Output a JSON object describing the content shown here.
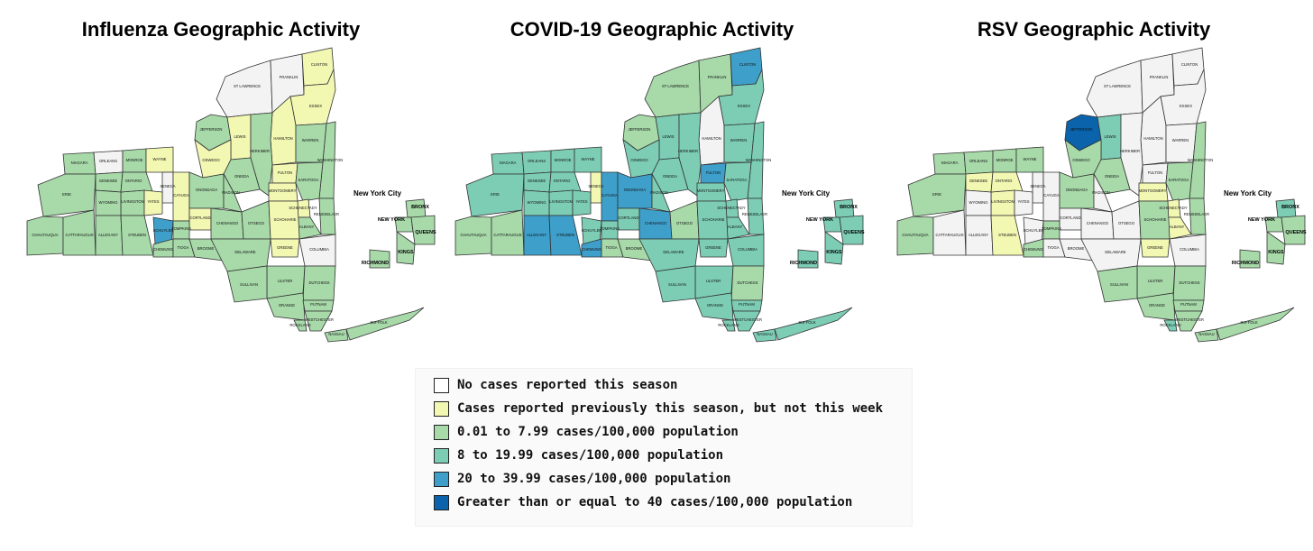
{
  "panels": [
    {
      "title": "Influenza Geographic Activity",
      "counties": {
        "st_lawrence": 0,
        "franklin": 0,
        "clinton": 1,
        "essex": 1,
        "jefferson": 2,
        "lewis": 1,
        "hamilton": 1,
        "warren": 2,
        "washington": 2,
        "oswego": 1,
        "oneida": 2,
        "herkimer": 2,
        "fulton": 1,
        "saratoga": 2,
        "montgomery": 1,
        "schenectady": 1,
        "rensselaer": 2,
        "albany": 2,
        "niagara": 2,
        "orleans": 0,
        "monroe": 2,
        "wayne": 1,
        "erie": 2,
        "genesee": 2,
        "livingston": 2,
        "ontario": 2,
        "seneca": 0,
        "cayuga": 1,
        "onondaga": 2,
        "madison": 2,
        "wyoming": 2,
        "yates": 1,
        "cortland": 1,
        "chenango": 2,
        "otsego": 2,
        "schoharie": 1,
        "chautauqua": 2,
        "cattaraugus": 2,
        "allegany": 2,
        "steuben": 2,
        "schuyler": 4,
        "tompkins": 2,
        "chemung": 2,
        "tioga": 2,
        "broome": 2,
        "delaware": 2,
        "greene": 1,
        "columbia": 0,
        "ulster": 2,
        "sullivan": 2,
        "dutchess": 2,
        "orange": 2,
        "putnam": 2,
        "westchester": 2,
        "rockland": 2,
        "nassau": 2,
        "suffolk": 2,
        "bronx": 2,
        "new_york": 2,
        "queens": 2,
        "kings": 2,
        "richmond": 2
      }
    },
    {
      "title": "COVID-19 Geographic Activity",
      "counties": {
        "st_lawrence": 2,
        "franklin": 2,
        "clinton": 4,
        "essex": 3,
        "jefferson": 2,
        "lewis": 3,
        "hamilton": 0,
        "warren": 3,
        "washington": 3,
        "oswego": 3,
        "oneida": 3,
        "herkimer": 3,
        "fulton": 4,
        "saratoga": 3,
        "montgomery": 3,
        "schenectady": 3,
        "rensselaer": 3,
        "albany": 3,
        "niagara": 3,
        "orleans": 3,
        "monroe": 3,
        "wayne": 3,
        "erie": 3,
        "genesee": 3,
        "livingston": 3,
        "ontario": 3,
        "seneca": 1,
        "cayuga": 4,
        "onondaga": 4,
        "madison": 3,
        "wyoming": 3,
        "yates": 3,
        "cortland": 3,
        "chenango": 4,
        "otsego": 2,
        "schoharie": 3,
        "chautauqua": 2,
        "cattaraugus": 2,
        "allegany": 4,
        "steuben": 4,
        "schuyler": 3,
        "tompkins": 3,
        "chemung": 4,
        "tioga": 2,
        "broome": 2,
        "delaware": 3,
        "greene": 3,
        "columbia": 3,
        "ulster": 3,
        "sullivan": 3,
        "dutchess": 2,
        "orange": 3,
        "putnam": 3,
        "westchester": 3,
        "rockland": 3,
        "nassau": 3,
        "suffolk": 3,
        "bronx": 3,
        "new_york": 3,
        "queens": 3,
        "kings": 3,
        "richmond": 3
      }
    },
    {
      "title": "RSV Geographic Activity",
      "counties": {
        "st_lawrence": 0,
        "franklin": 0,
        "clinton": 0,
        "essex": 0,
        "jefferson": 5,
        "lewis": 3,
        "hamilton": 0,
        "warren": 0,
        "washington": 2,
        "oswego": 2,
        "oneida": 2,
        "herkimer": 0,
        "fulton": 0,
        "saratoga": 2,
        "montgomery": 1,
        "schenectady": 1,
        "rensselaer": 2,
        "albany": 1,
        "niagara": 2,
        "orleans": 2,
        "monroe": 2,
        "wayne": 2,
        "erie": 2,
        "genesee": 1,
        "livingston": 1,
        "ontario": 1,
        "seneca": 0,
        "cayuga": 0,
        "onondaga": 2,
        "madison": 0,
        "wyoming": 0,
        "yates": 0,
        "cortland": 0,
        "chenango": 0,
        "otsego": 0,
        "schoharie": 2,
        "chautauqua": 2,
        "cattaraugus": 0,
        "allegany": 0,
        "steuben": 1,
        "schuyler": 0,
        "tompkins": 2,
        "chemung": 2,
        "tioga": 0,
        "broome": 0,
        "delaware": 0,
        "greene": 1,
        "columbia": 0,
        "ulster": 2,
        "sullivan": 2,
        "dutchess": 2,
        "orange": 2,
        "putnam": 2,
        "westchester": 2,
        "rockland": 3,
        "nassau": 2,
        "suffolk": 2,
        "bronx": 3,
        "new_york": 2,
        "queens": 2,
        "kings": 2,
        "richmond": 2
      }
    }
  ],
  "county_names": {
    "st_lawrence": "ST LAWRENCE",
    "franklin": "FRANKLIN",
    "clinton": "CLINTON",
    "essex": "ESSEX",
    "jefferson": "JEFFERSON",
    "lewis": "LEWIS",
    "hamilton": "HAMILTON",
    "warren": "WARREN",
    "washington": "WASHINGTON",
    "oswego": "OSWEGO",
    "oneida": "ONEIDA",
    "herkimer": "HERKIMER",
    "fulton": "FULTON",
    "saratoga": "SARATOGA",
    "montgomery": "MONTGOMERY",
    "schenectady": "SCHENECTADY",
    "rensselaer": "RENSSELAER",
    "albany": "ALBANY",
    "niagara": "NIAGARA",
    "orleans": "ORLEANS",
    "monroe": "MONROE",
    "wayne": "WAYNE",
    "erie": "ERIE",
    "genesee": "GENESEE",
    "livingston": "LIVINGSTON",
    "ontario": "ONTARIO",
    "seneca": "SENECA",
    "cayuga": "CAYUGA",
    "onondaga": "ONONDAGA",
    "madison": "MADISON",
    "wyoming": "WYOMING",
    "yates": "YATES",
    "cortland": "CORTLAND",
    "chenango": "CHENANGO",
    "otsego": "OTSEGO",
    "schoharie": "SCHOHARIE",
    "chautauqua": "CHAUTAUQUA",
    "cattaraugus": "CATTARAUGUS",
    "allegany": "ALLEGANY",
    "steuben": "STEUBEN",
    "schuyler": "SCHUYLER",
    "tompkins": "TOMPKINS",
    "chemung": "CHEMUNG",
    "tioga": "TIOGA",
    "broome": "BROOME",
    "delaware": "DELAWARE",
    "greene": "GREENE",
    "columbia": "COLUMBIA",
    "ulster": "ULSTER",
    "sullivan": "SULLIVAN",
    "dutchess": "DUTCHESS",
    "orange": "ORANGE",
    "putnam": "PUTNAM",
    "westchester": "WESTCHESTER",
    "rockland": "ROCKLAND",
    "nassau": "NASSAU",
    "suffolk": "SUFFOLK"
  },
  "nyc_inset": {
    "title": "New York City",
    "boroughs": [
      "BRONX",
      "NEW YORK",
      "QUEENS",
      "KINGS",
      "RICHMOND"
    ]
  },
  "legend": [
    {
      "label": "No cases reported this season",
      "color": "#ffffff"
    },
    {
      "label": "Cases reported previously this season, but not this week",
      "color": "#f2f7b2"
    },
    {
      "label": "0.01 to 7.99 cases/100,000 population",
      "color": "#a7d9a9"
    },
    {
      "label": "8 to 19.99 cases/100,000 population",
      "color": "#7dcdb5"
    },
    {
      "label": "20 to 39.99 cases/100,000 population",
      "color": "#3e9fcb"
    },
    {
      "label": "Greater than or equal to 40 cases/100,000 population",
      "color": "#0b63ab"
    }
  ],
  "category_colors": [
    "#f3f3f3",
    "#f2f7b2",
    "#a7d9a9",
    "#7dcdb5",
    "#3e9fcb",
    "#0b63ab"
  ]
}
